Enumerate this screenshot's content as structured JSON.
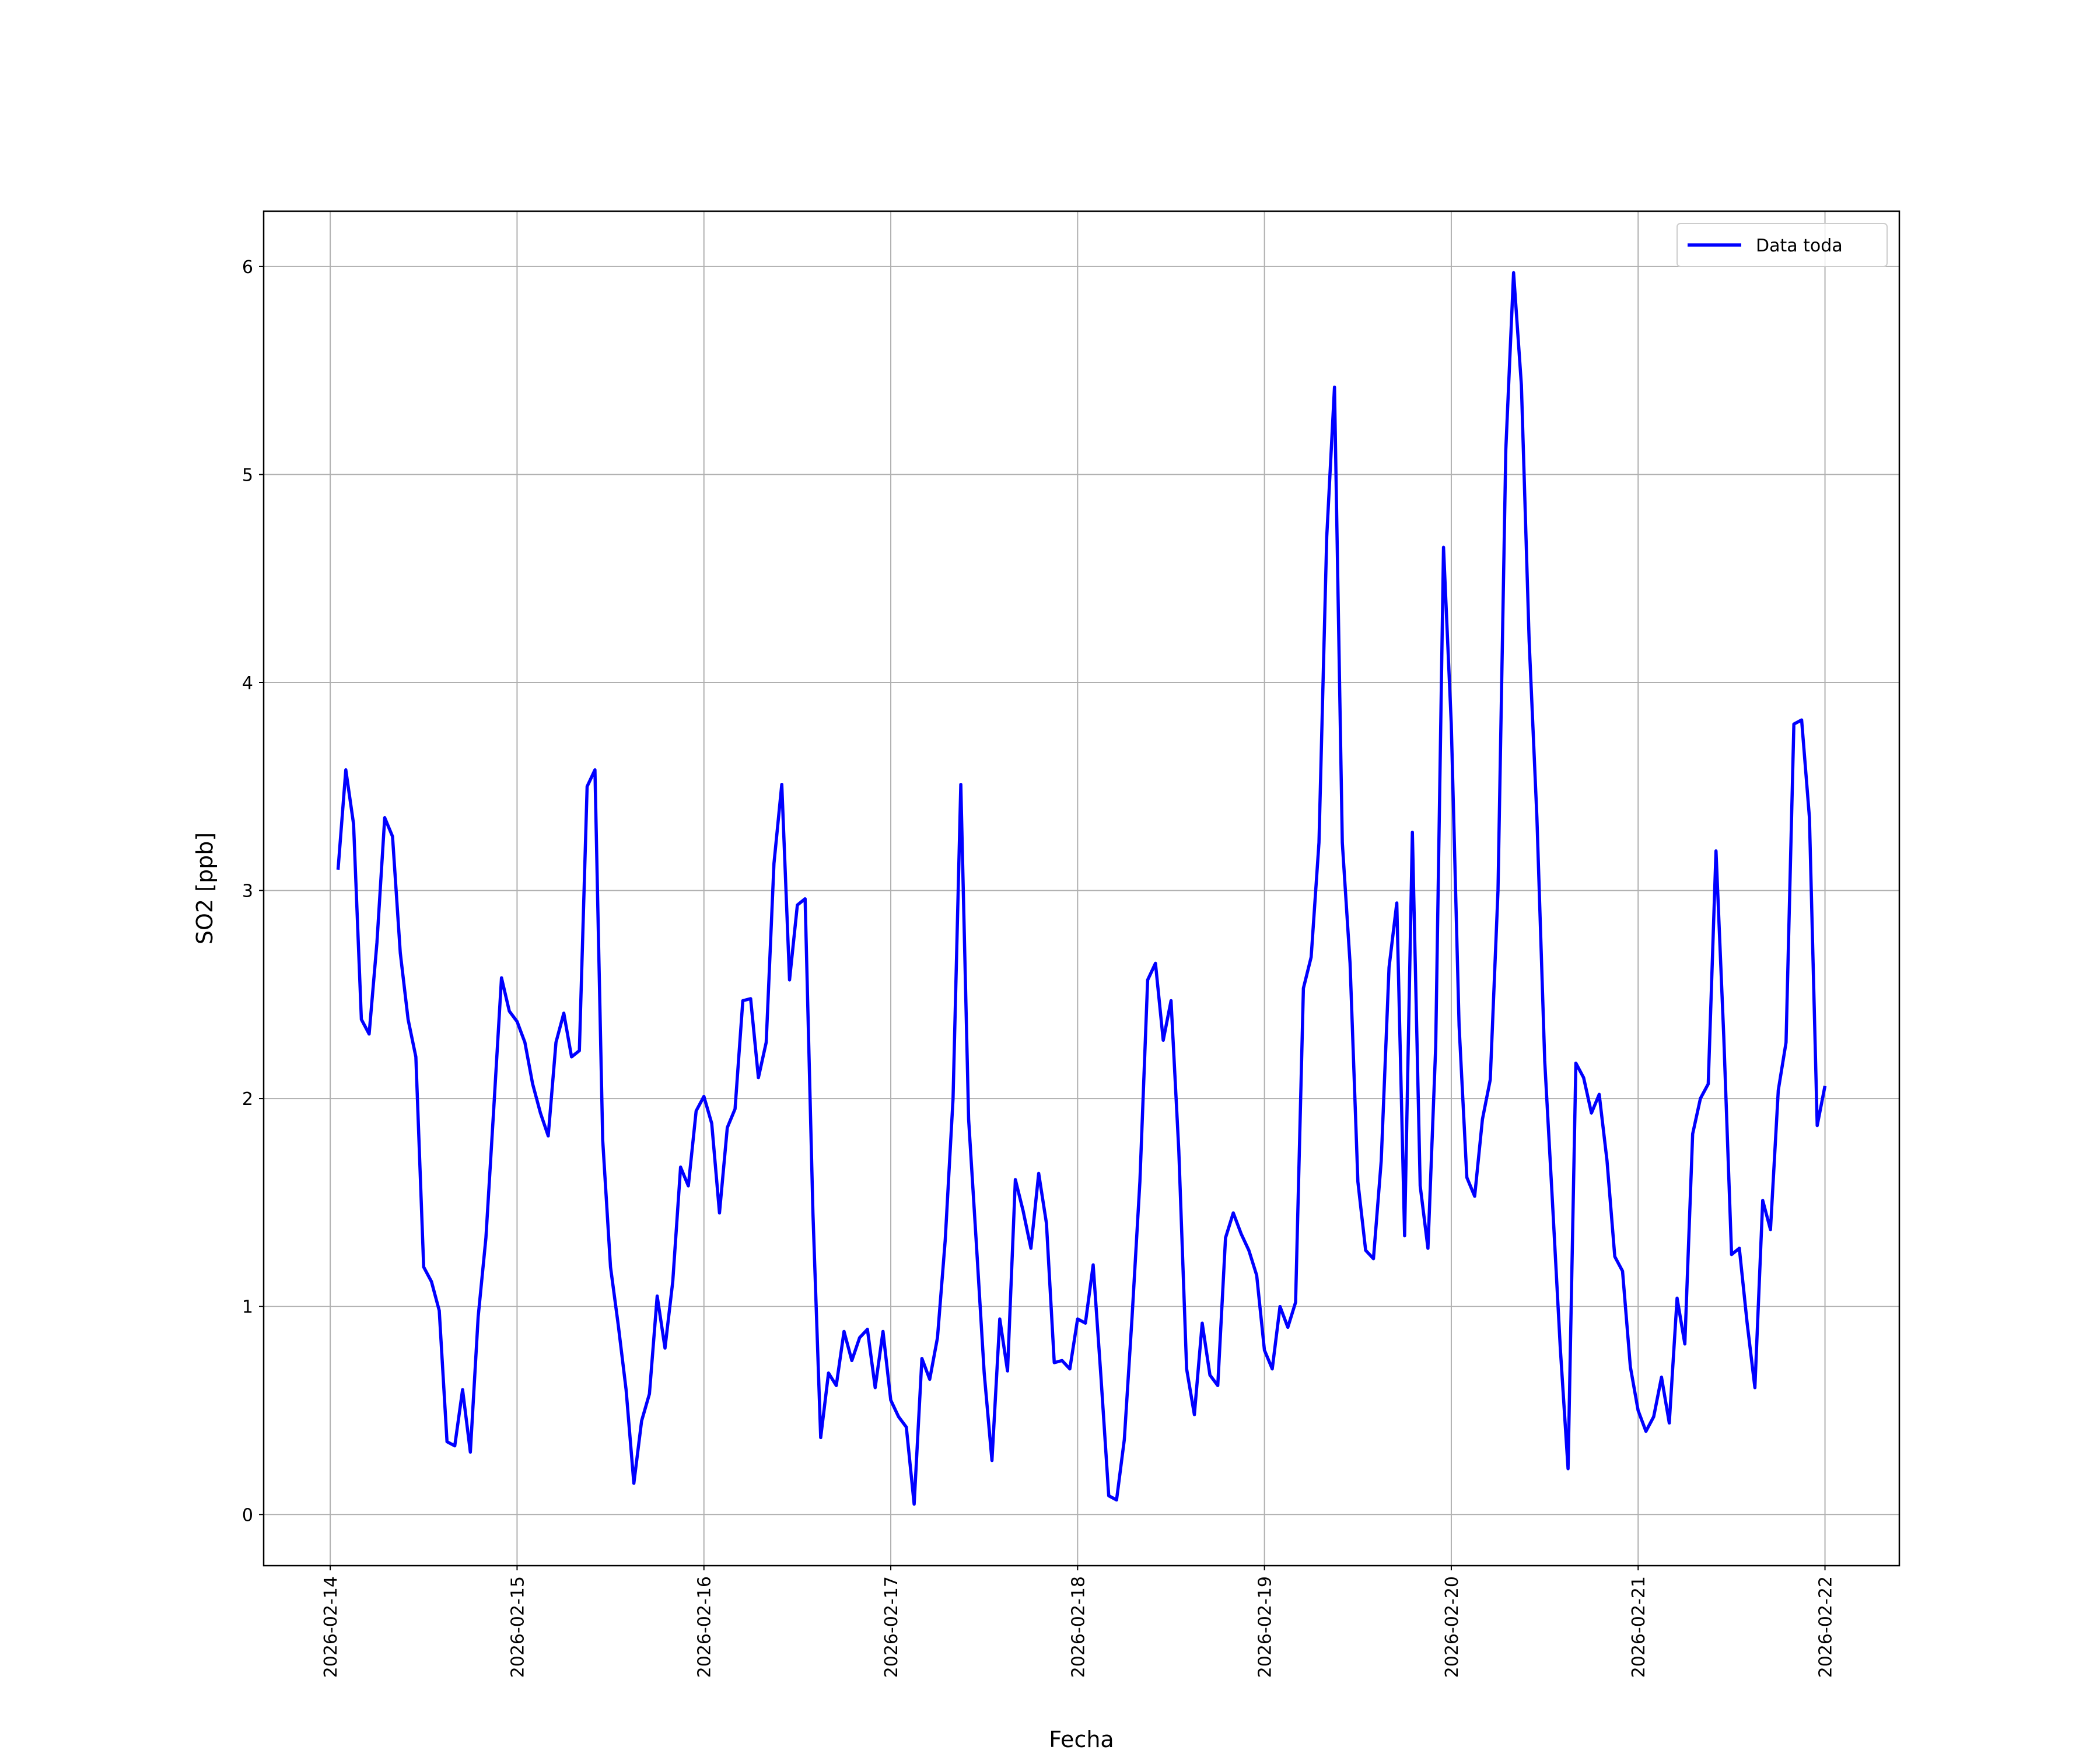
{
  "chart_data": {
    "type": "line",
    "xlabel": "Fecha",
    "ylabel": "SO2 [ppb]",
    "x": [
      "2026-02-14 01:00",
      "2026-02-14 02:00",
      "2026-02-14 03:00",
      "2026-02-14 04:00",
      "2026-02-14 05:00",
      "2026-02-14 06:00",
      "2026-02-14 07:00",
      "2026-02-14 08:00",
      "2026-02-14 09:00",
      "2026-02-14 10:00",
      "2026-02-14 11:00",
      "2026-02-14 12:00",
      "2026-02-14 13:00",
      "2026-02-14 14:00",
      "2026-02-14 15:00",
      "2026-02-14 16:00",
      "2026-02-14 17:00",
      "2026-02-14 18:00",
      "2026-02-14 19:00",
      "2026-02-14 20:00",
      "2026-02-14 21:00",
      "2026-02-14 22:00",
      "2026-02-14 23:00",
      "2026-02-15 00:00",
      "2026-02-15 01:00",
      "2026-02-15 02:00",
      "2026-02-15 03:00",
      "2026-02-15 04:00",
      "2026-02-15 05:00",
      "2026-02-15 06:00",
      "2026-02-15 07:00",
      "2026-02-15 08:00",
      "2026-02-15 09:00",
      "2026-02-15 10:00",
      "2026-02-15 11:00",
      "2026-02-15 12:00",
      "2026-02-15 13:00",
      "2026-02-15 14:00",
      "2026-02-15 15:00",
      "2026-02-15 16:00",
      "2026-02-15 17:00",
      "2026-02-15 18:00",
      "2026-02-15 19:00",
      "2026-02-15 20:00",
      "2026-02-15 21:00",
      "2026-02-15 22:00",
      "2026-02-15 23:00",
      "2026-02-16 00:00",
      "2026-02-16 01:00",
      "2026-02-16 02:00",
      "2026-02-16 03:00",
      "2026-02-16 04:00",
      "2026-02-16 05:00",
      "2026-02-16 06:00",
      "2026-02-16 07:00",
      "2026-02-16 08:00",
      "2026-02-16 09:00",
      "2026-02-16 10:00",
      "2026-02-16 11:00",
      "2026-02-16 12:00",
      "2026-02-16 13:00",
      "2026-02-16 14:00",
      "2026-02-16 15:00",
      "2026-02-16 16:00",
      "2026-02-16 17:00",
      "2026-02-16 18:00",
      "2026-02-16 19:00",
      "2026-02-16 20:00",
      "2026-02-16 21:00",
      "2026-02-16 22:00",
      "2026-02-16 23:00",
      "2026-02-17 00:00",
      "2026-02-17 01:00",
      "2026-02-17 02:00",
      "2026-02-17 03:00",
      "2026-02-17 04:00",
      "2026-02-17 05:00",
      "2026-02-17 06:00",
      "2026-02-17 07:00",
      "2026-02-17 08:00",
      "2026-02-17 09:00",
      "2026-02-17 10:00",
      "2026-02-17 11:00",
      "2026-02-17 12:00",
      "2026-02-17 13:00",
      "2026-02-17 14:00",
      "2026-02-17 15:00",
      "2026-02-17 16:00",
      "2026-02-17 17:00",
      "2026-02-17 18:00",
      "2026-02-17 19:00",
      "2026-02-17 20:00",
      "2026-02-17 21:00",
      "2026-02-17 22:00",
      "2026-02-17 23:00",
      "2026-02-18 00:00",
      "2026-02-18 01:00",
      "2026-02-18 02:00",
      "2026-02-18 03:00",
      "2026-02-18 04:00",
      "2026-02-18 05:00",
      "2026-02-18 06:00",
      "2026-02-18 07:00",
      "2026-02-18 08:00",
      "2026-02-18 09:00",
      "2026-02-18 10:00",
      "2026-02-18 11:00",
      "2026-02-18 12:00",
      "2026-02-18 13:00",
      "2026-02-18 14:00",
      "2026-02-18 15:00",
      "2026-02-18 16:00",
      "2026-02-18 17:00",
      "2026-02-18 18:00",
      "2026-02-18 19:00",
      "2026-02-18 20:00",
      "2026-02-18 21:00",
      "2026-02-18 22:00",
      "2026-02-18 23:00",
      "2026-02-19 00:00",
      "2026-02-19 01:00",
      "2026-02-19 02:00",
      "2026-02-19 03:00",
      "2026-02-19 04:00",
      "2026-02-19 05:00",
      "2026-02-19 06:00",
      "2026-02-19 07:00",
      "2026-02-19 08:00",
      "2026-02-19 09:00",
      "2026-02-19 10:00",
      "2026-02-19 11:00",
      "2026-02-19 12:00",
      "2026-02-19 13:00",
      "2026-02-19 14:00",
      "2026-02-19 15:00",
      "2026-02-19 16:00",
      "2026-02-19 17:00",
      "2026-02-19 18:00",
      "2026-02-19 19:00",
      "2026-02-19 20:00",
      "2026-02-19 21:00",
      "2026-02-19 22:00",
      "2026-02-19 23:00",
      "2026-02-20 00:00",
      "2026-02-20 01:00",
      "2026-02-20 02:00",
      "2026-02-20 03:00",
      "2026-02-20 04:00",
      "2026-02-20 05:00",
      "2026-02-20 06:00",
      "2026-02-20 07:00",
      "2026-02-20 08:00",
      "2026-02-20 09:00",
      "2026-02-20 10:00",
      "2026-02-20 11:00",
      "2026-02-20 12:00",
      "2026-02-20 13:00",
      "2026-02-20 14:00",
      "2026-02-20 15:00",
      "2026-02-20 16:00",
      "2026-02-20 17:00",
      "2026-02-20 18:00",
      "2026-02-20 19:00",
      "2026-02-20 20:00",
      "2026-02-20 21:00",
      "2026-02-20 22:00",
      "2026-02-20 23:00",
      "2026-02-21 00:00",
      "2026-02-21 01:00",
      "2026-02-21 02:00",
      "2026-02-21 03:00",
      "2026-02-21 04:00",
      "2026-02-21 05:00",
      "2026-02-21 06:00",
      "2026-02-21 07:00",
      "2026-02-21 08:00",
      "2026-02-21 09:00",
      "2026-02-21 10:00",
      "2026-02-21 11:00",
      "2026-02-21 12:00",
      "2026-02-21 13:00",
      "2026-02-21 14:00",
      "2026-02-21 15:00",
      "2026-02-21 16:00",
      "2026-02-21 17:00",
      "2026-02-21 18:00",
      "2026-02-21 19:00",
      "2026-02-21 20:00",
      "2026-02-21 21:00",
      "2026-02-21 22:00",
      "2026-02-21 23:00",
      "2026-02-22 00:00"
    ],
    "series": [
      {
        "name": "Data toda",
        "color": "#0000ff",
        "values": [
          3.1,
          3.58,
          3.32,
          2.38,
          2.31,
          2.75,
          3.35,
          3.26,
          2.7,
          2.38,
          2.2,
          1.19,
          1.12,
          0.98,
          0.35,
          0.33,
          0.6,
          0.3,
          0.95,
          1.33,
          1.95,
          2.58,
          2.42,
          2.37,
          2.27,
          2.07,
          1.93,
          1.82,
          2.27,
          2.41,
          2.2,
          2.23,
          3.5,
          3.58,
          1.8,
          1.19,
          0.91,
          0.6,
          0.15,
          0.45,
          0.58,
          1.05,
          0.8,
          1.12,
          1.67,
          1.58,
          1.94,
          2.01,
          1.88,
          1.45,
          1.86,
          1.95,
          2.47,
          2.48,
          2.1,
          2.27,
          3.13,
          3.51,
          2.57,
          2.93,
          2.96,
          1.45,
          0.37,
          0.68,
          0.62,
          0.88,
          0.74,
          0.85,
          0.89,
          0.61,
          0.88,
          0.55,
          0.47,
          0.42,
          0.05,
          0.75,
          0.65,
          0.85,
          1.32,
          2.0,
          3.51,
          1.9,
          1.3,
          0.68,
          0.26,
          0.94,
          0.69,
          1.61,
          1.46,
          1.28,
          1.64,
          1.4,
          0.73,
          0.74,
          0.7,
          0.94,
          0.92,
          1.2,
          0.66,
          0.09,
          0.07,
          0.36,
          0.95,
          1.6,
          2.57,
          2.65,
          2.28,
          2.47,
          1.75,
          0.7,
          0.48,
          0.92,
          0.67,
          0.62,
          1.33,
          1.45,
          1.35,
          1.27,
          1.15,
          0.79,
          0.7,
          1.0,
          0.9,
          1.02,
          2.53,
          2.68,
          3.23,
          4.7,
          5.42,
          3.23,
          2.65,
          1.6,
          1.27,
          1.23,
          1.7,
          2.63,
          2.94,
          1.34,
          3.28,
          1.58,
          1.28,
          2.25,
          4.65,
          3.8,
          2.35,
          1.62,
          1.53,
          1.9,
          2.09,
          3.0,
          5.12,
          5.97,
          5.43,
          4.2,
          3.35,
          2.18,
          1.5,
          0.8,
          0.22,
          2.17,
          2.1,
          1.93,
          2.02,
          1.7,
          1.24,
          1.17,
          0.71,
          0.5,
          0.4,
          0.47,
          0.66,
          0.44,
          1.04,
          0.82,
          1.83,
          2.0,
          2.07,
          3.19,
          2.3,
          1.25,
          1.28,
          0.92,
          0.61,
          1.51,
          1.37,
          2.04,
          2.27,
          3.8,
          3.82,
          3.35,
          1.87,
          2.06
        ]
      }
    ],
    "xlim": [
      "2026-02-13 15:27",
      "2026-02-22 09:33"
    ],
    "xticks": [
      "2026-02-14",
      "2026-02-15",
      "2026-02-16",
      "2026-02-17",
      "2026-02-18",
      "2026-02-19",
      "2026-02-20",
      "2026-02-21",
      "2026-02-22"
    ],
    "ylim": [
      -0.246,
      6.266
    ],
    "yticks": [
      0,
      1,
      2,
      3,
      4,
      5,
      6
    ],
    "grid": true,
    "legend": "upper right"
  }
}
